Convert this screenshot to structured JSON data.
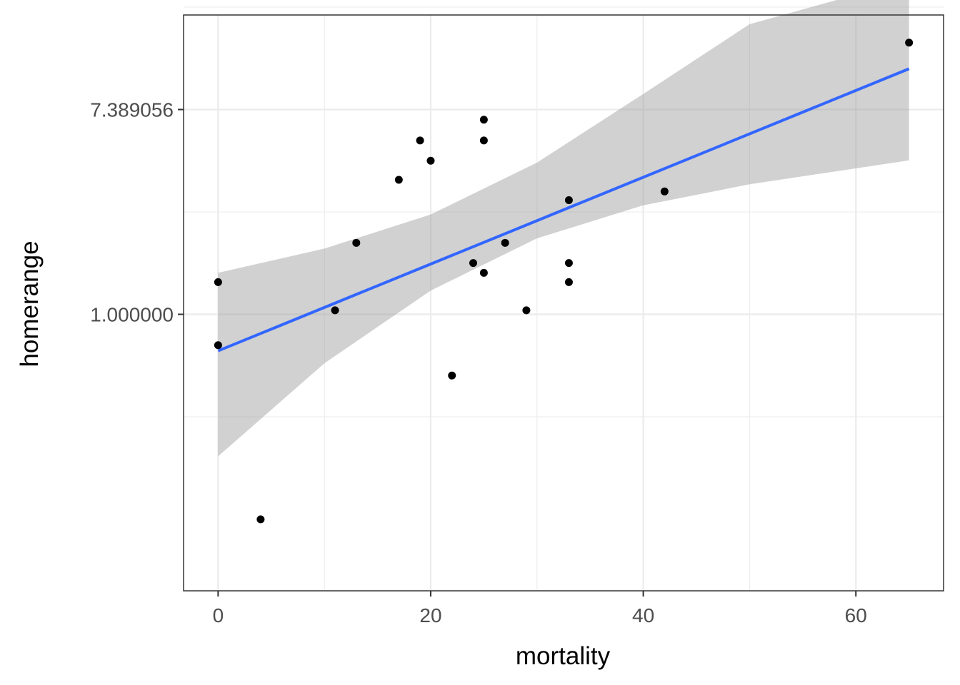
{
  "chart_data": {
    "type": "scatter",
    "xlabel": "mortality",
    "ylabel": "homerange",
    "y_scale": "log",
    "xlim": [
      -3.25,
      68.25
    ],
    "ylim": [
      0.0672,
      18.6
    ],
    "x_ticks": [
      0,
      20,
      40,
      60
    ],
    "x_tick_labels": [
      "0",
      "20",
      "40",
      "60"
    ],
    "y_ticks": [
      1.0,
      7.389056
    ],
    "y_tick_labels": [
      "1.000000",
      "7.389056"
    ],
    "grid": true,
    "points": [
      {
        "x": 0,
        "y": 1.37
      },
      {
        "x": 0,
        "y": 0.74
      },
      {
        "x": 4,
        "y": 0.135
      },
      {
        "x": 11,
        "y": 1.04
      },
      {
        "x": 13,
        "y": 2.01
      },
      {
        "x": 17,
        "y": 3.72
      },
      {
        "x": 19,
        "y": 5.46
      },
      {
        "x": 20,
        "y": 4.48
      },
      {
        "x": 22,
        "y": 0.55
      },
      {
        "x": 24,
        "y": 1.65
      },
      {
        "x": 25,
        "y": 6.69
      },
      {
        "x": 25,
        "y": 5.46
      },
      {
        "x": 25,
        "y": 1.5
      },
      {
        "x": 27,
        "y": 2.01
      },
      {
        "x": 29,
        "y": 1.04
      },
      {
        "x": 33,
        "y": 3.05
      },
      {
        "x": 33,
        "y": 1.65
      },
      {
        "x": 33,
        "y": 1.37
      },
      {
        "x": 42,
        "y": 3.32
      },
      {
        "x": 65,
        "y": 14.2
      }
    ],
    "fit": {
      "x": [
        0,
        65
      ],
      "y": [
        0.7,
        11.0
      ],
      "ci_x": [
        0,
        10,
        20,
        30,
        40,
        50,
        65
      ],
      "ci_lower": [
        0.25,
        0.62,
        1.26,
        2.1,
        2.9,
        3.56,
        4.5
      ],
      "ci_upper": [
        1.5,
        1.9,
        2.65,
        4.4,
        8.6,
        17.0,
        26.2
      ]
    },
    "colors": {
      "line": "#3366ff",
      "ribbon": "#999999",
      "point": "#000000",
      "panel_border": "#333333",
      "grid": "#ebebeb"
    }
  }
}
